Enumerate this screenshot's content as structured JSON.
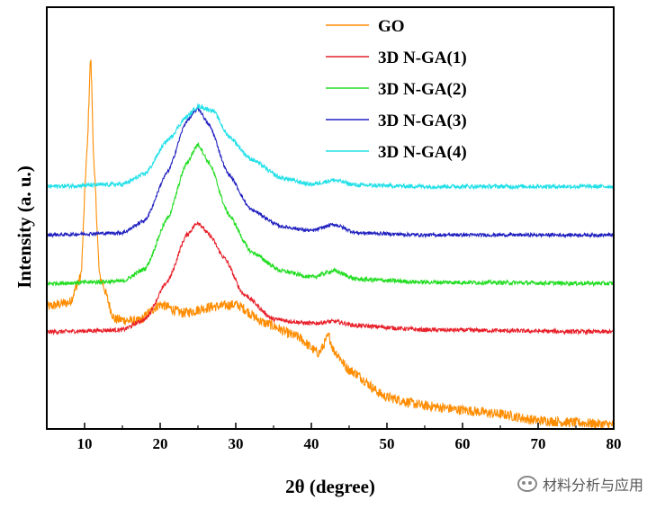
{
  "chart_data": {
    "type": "line",
    "title": "",
    "xlabel": "2θ (degree)",
    "ylabel": "Intensity (a. u.)",
    "xlim": [
      5,
      80
    ],
    "ylim": [
      0,
      10
    ],
    "x_ticks": [
      10,
      20,
      30,
      40,
      50,
      60,
      70,
      80
    ],
    "y_ticks_shown": false,
    "grid": false,
    "legend_position": "top-right",
    "series": [
      {
        "name": "GO",
        "color": "#ff8c00",
        "baseline": 1.3,
        "noise": 0.12,
        "points": [
          [
            5,
            2.9
          ],
          [
            8,
            3.0
          ],
          [
            9.5,
            3.6
          ],
          [
            10.3,
            6.5
          ],
          [
            10.8,
            8.8
          ],
          [
            11.3,
            6.0
          ],
          [
            12,
            3.6
          ],
          [
            14,
            2.6
          ],
          [
            17,
            2.55
          ],
          [
            20,
            2.95
          ],
          [
            23,
            2.75
          ],
          [
            27,
            2.9
          ],
          [
            30,
            2.95
          ],
          [
            34,
            2.5
          ],
          [
            38,
            2.2
          ],
          [
            41,
            1.8
          ],
          [
            42.3,
            2.2
          ],
          [
            43,
            1.85
          ],
          [
            45,
            1.4
          ],
          [
            50,
            0.75
          ],
          [
            55,
            0.55
          ],
          [
            60,
            0.45
          ],
          [
            65,
            0.35
          ],
          [
            70,
            0.2
          ],
          [
            75,
            0.15
          ],
          [
            80,
            0.1
          ]
        ]
      },
      {
        "name": "3D N-GA(1)",
        "color": "#e8202a",
        "baseline": 2.3,
        "noise": 0.05,
        "points": [
          [
            5,
            2.3
          ],
          [
            15,
            2.35
          ],
          [
            18,
            2.6
          ],
          [
            21,
            3.5
          ],
          [
            23.5,
            4.6
          ],
          [
            25,
            4.9
          ],
          [
            26.5,
            4.6
          ],
          [
            28.5,
            4.05
          ],
          [
            31,
            3.2
          ],
          [
            35,
            2.6
          ],
          [
            40,
            2.5
          ],
          [
            43,
            2.55
          ],
          [
            46,
            2.45
          ],
          [
            55,
            2.35
          ],
          [
            80,
            2.3
          ]
        ]
      },
      {
        "name": "3D N-GA(2)",
        "color": "#22dd22",
        "baseline": 3.45,
        "noise": 0.05,
        "points": [
          [
            5,
            3.45
          ],
          [
            15,
            3.5
          ],
          [
            18,
            3.8
          ],
          [
            21,
            5.0
          ],
          [
            23.5,
            6.3
          ],
          [
            25,
            6.75
          ],
          [
            26.5,
            6.3
          ],
          [
            29,
            5.1
          ],
          [
            32,
            4.2
          ],
          [
            36,
            3.75
          ],
          [
            40,
            3.6
          ],
          [
            43,
            3.75
          ],
          [
            46,
            3.55
          ],
          [
            55,
            3.48
          ],
          [
            80,
            3.45
          ]
        ]
      },
      {
        "name": "3D N-GA(3)",
        "color": "#2020c0",
        "baseline": 4.6,
        "noise": 0.04,
        "points": [
          [
            5,
            4.6
          ],
          [
            15,
            4.65
          ],
          [
            18,
            4.95
          ],
          [
            21,
            6.1
          ],
          [
            23.5,
            7.3
          ],
          [
            25,
            7.6
          ],
          [
            26.5,
            7.2
          ],
          [
            29,
            6.05
          ],
          [
            32,
            5.2
          ],
          [
            36,
            4.8
          ],
          [
            40,
            4.7
          ],
          [
            43,
            4.85
          ],
          [
            46,
            4.65
          ],
          [
            55,
            4.6
          ],
          [
            80,
            4.6
          ]
        ]
      },
      {
        "name": "3D N-GA(4)",
        "color": "#22e0e8",
        "baseline": 5.75,
        "noise": 0.05,
        "points": [
          [
            5,
            5.75
          ],
          [
            15,
            5.8
          ],
          [
            18,
            6.05
          ],
          [
            21,
            6.85
          ],
          [
            23.5,
            7.4
          ],
          [
            25,
            7.65
          ],
          [
            27,
            7.55
          ],
          [
            29,
            6.95
          ],
          [
            32,
            6.4
          ],
          [
            36,
            5.95
          ],
          [
            40,
            5.8
          ],
          [
            43,
            5.9
          ],
          [
            46,
            5.78
          ],
          [
            55,
            5.75
          ],
          [
            80,
            5.75
          ]
        ]
      }
    ]
  },
  "watermark": {
    "icon": "wechat-icon",
    "text": "材料分析与应用"
  }
}
